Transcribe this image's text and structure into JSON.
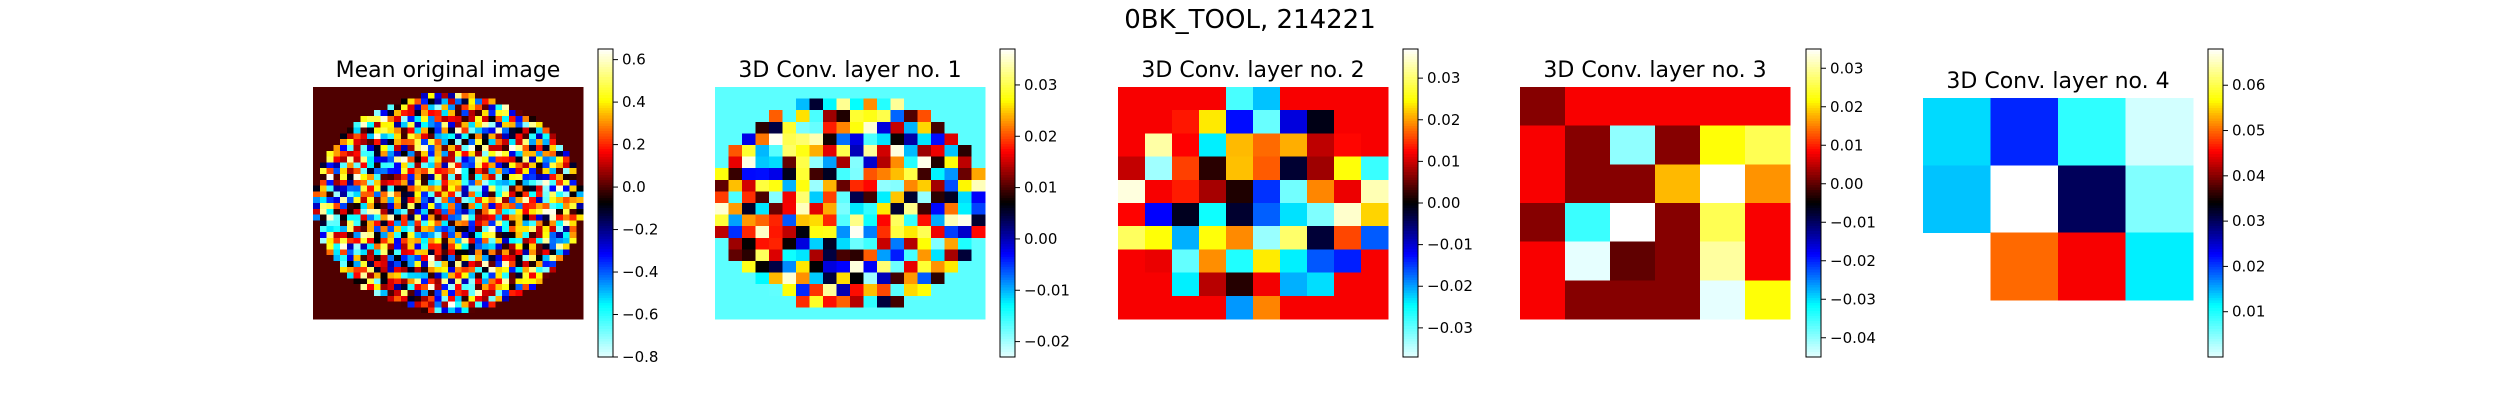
{
  "chart_data": {
    "title": "0BK_TOOL, 214221",
    "type": "heatmap",
    "colormap": "cyan-blue-black-red-yellow-white diverging",
    "colormap_stops": [
      "#e6ffff",
      "#00ffff",
      "#0000ff",
      "#000000",
      "#ff0000",
      "#ffff00",
      "#ffffff"
    ],
    "panels": [
      {
        "title": "Mean original image",
        "grid_size": 40,
        "mask": "circle",
        "outside_value": 0.0,
        "vmin": -0.8,
        "vmax": 0.65,
        "colorbar_ticks": [
          "0.6",
          "0.4",
          "0.2",
          "0.0",
          "−0.2",
          "−0.4",
          "−0.6",
          "−0.8"
        ],
        "colorbar_tick_values": [
          0.6,
          0.4,
          0.2,
          0.0,
          -0.2,
          -0.4,
          -0.6,
          -0.8
        ],
        "seed": 7
      },
      {
        "title": "3D Conv. layer no. 1",
        "grid_size": 20,
        "mask": "circle",
        "outside_value": -0.017,
        "vmin": -0.023,
        "vmax": 0.037,
        "colorbar_ticks": [
          "0.03",
          "0.02",
          "0.01",
          "0.00",
          "−0.01",
          "−0.02"
        ],
        "colorbar_tick_values": [
          0.03,
          0.02,
          0.01,
          0.0,
          -0.01,
          -0.02
        ],
        "seed": 13
      },
      {
        "title": "3D Conv. layer no. 2",
        "grid_size": 10,
        "mask": "circle",
        "outside_value": 0.012,
        "vmin": -0.037,
        "vmax": 0.037,
        "colorbar_ticks": [
          "0.03",
          "0.02",
          "0.01",
          "0.00",
          "−0.01",
          "−0.02",
          "−0.03"
        ],
        "colorbar_tick_values": [
          0.03,
          0.02,
          0.01,
          0.0,
          -0.01,
          -0.02,
          -0.03
        ],
        "seed": 21
      },
      {
        "title": "3D Conv. layer no. 3",
        "vmin": -0.045,
        "vmax": 0.035,
        "colorbar_ticks": [
          "0.03",
          "0.02",
          "0.01",
          "0.00",
          "−0.01",
          "−0.02",
          "−0.03",
          "−0.04"
        ],
        "colorbar_tick_values": [
          0.03,
          0.02,
          0.01,
          0.0,
          -0.01,
          -0.02,
          -0.03,
          -0.04
        ],
        "matrix": [
          [
            0.002,
            0.008,
            0.008,
            0.008,
            0.008,
            0.008
          ],
          [
            0.008,
            0.002,
            -0.04,
            0.002,
            0.022,
            0.026
          ],
          [
            0.008,
            0.002,
            0.002,
            0.018,
            0.035,
            0.016
          ],
          [
            0.002,
            -0.035,
            0.035,
            0.002,
            0.026,
            0.008
          ],
          [
            0.008,
            -0.045,
            0.0,
            0.002,
            0.03,
            0.008
          ],
          [
            0.008,
            0.002,
            0.002,
            0.002,
            -0.045,
            0.022
          ]
        ]
      },
      {
        "title": "3D Conv. layer no. 4",
        "vmin": 0.0,
        "vmax": 0.068,
        "colorbar_ticks": [
          "0.06",
          "0.05",
          "0.04",
          "0.03",
          "0.02",
          "0.01"
        ],
        "colorbar_tick_values": [
          0.06,
          0.05,
          0.04,
          0.03,
          0.02,
          0.01
        ],
        "matrix": [
          [
            0.013,
            0.021,
            0.009,
            0.001
          ],
          [
            0.014,
            0.068,
            0.03,
            0.005
          ],
          [
            null,
            0.05,
            0.045,
            0.012
          ]
        ]
      }
    ]
  }
}
